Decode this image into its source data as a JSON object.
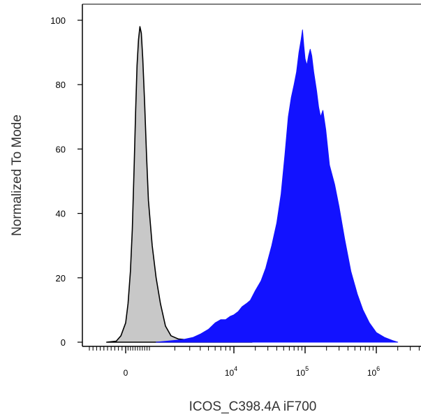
{
  "chart_data": {
    "type": "area",
    "xlabel": "ICOS_C398.4A iF700",
    "ylabel": "Normalized To Mode",
    "ylim": [
      0,
      105
    ],
    "xscale": "biexponential",
    "xlim": [
      -600,
      2600000
    ],
    "y_ticks": [
      {
        "label": "0",
        "value": 0
      },
      {
        "label": "20",
        "value": 20
      },
      {
        "label": "40",
        "value": 40
      },
      {
        "label": "60",
        "value": 60
      },
      {
        "label": "80",
        "value": 80
      },
      {
        "label": "100",
        "value": 100
      }
    ],
    "x_ticks": [
      {
        "base": "0",
        "exp": "",
        "value": 0
      },
      {
        "base": "10",
        "exp": "4",
        "value": 10000
      },
      {
        "base": "10",
        "exp": "5",
        "value": 100000
      },
      {
        "base": "10",
        "exp": "6",
        "value": 1000000
      }
    ],
    "series": [
      {
        "color": "#c8c8c8",
        "stroke": "#000000",
        "points": [
          [
            -800,
            0
          ],
          [
            -400,
            0.3
          ],
          [
            -200,
            2
          ],
          [
            0,
            6
          ],
          [
            100,
            12
          ],
          [
            200,
            22
          ],
          [
            280,
            35
          ],
          [
            360,
            55
          ],
          [
            420,
            72
          ],
          [
            480,
            86
          ],
          [
            540,
            94
          ],
          [
            600,
            98
          ],
          [
            660,
            96
          ],
          [
            720,
            88
          ],
          [
            800,
            74
          ],
          [
            880,
            58
          ],
          [
            960,
            44
          ],
          [
            1080,
            30
          ],
          [
            1200,
            20
          ],
          [
            1350,
            12
          ],
          [
            1550,
            5
          ],
          [
            1800,
            2
          ],
          [
            2200,
            1
          ],
          [
            3500,
            0.5
          ],
          [
            6000,
            0.5
          ],
          [
            11000,
            0.8
          ],
          [
            14000,
            0.4
          ],
          [
            18000,
            0
          ]
        ]
      },
      {
        "color": "#1212ff",
        "stroke": "#1212ff",
        "points": [
          [
            1200,
            0
          ],
          [
            1700,
            0.4
          ],
          [
            2500,
            0.8
          ],
          [
            3300,
            1.5
          ],
          [
            4000,
            2.5
          ],
          [
            5000,
            4
          ],
          [
            6000,
            6
          ],
          [
            7000,
            7
          ],
          [
            8000,
            7
          ],
          [
            9000,
            8
          ],
          [
            10000,
            8.5
          ],
          [
            11500,
            9.5
          ],
          [
            13000,
            11
          ],
          [
            15000,
            12
          ],
          [
            17000,
            13
          ],
          [
            20000,
            16
          ],
          [
            24000,
            19
          ],
          [
            28000,
            23
          ],
          [
            34000,
            30
          ],
          [
            40000,
            37
          ],
          [
            46000,
            46
          ],
          [
            52000,
            58
          ],
          [
            58000,
            70
          ],
          [
            64000,
            76
          ],
          [
            70000,
            80
          ],
          [
            76000,
            84
          ],
          [
            82000,
            90
          ],
          [
            88000,
            94
          ],
          [
            92000,
            97
          ],
          [
            96000,
            92
          ],
          [
            100000,
            88
          ],
          [
            106000,
            86
          ],
          [
            112000,
            89
          ],
          [
            118000,
            91
          ],
          [
            124000,
            89
          ],
          [
            132000,
            84
          ],
          [
            145000,
            78
          ],
          [
            155000,
            73
          ],
          [
            165000,
            70
          ],
          [
            178000,
            72
          ],
          [
            195000,
            66
          ],
          [
            220000,
            55
          ],
          [
            260000,
            49
          ],
          [
            300000,
            42
          ],
          [
            360000,
            32
          ],
          [
            440000,
            22
          ],
          [
            540000,
            15
          ],
          [
            650000,
            10
          ],
          [
            800000,
            6
          ],
          [
            1000000,
            3
          ],
          [
            1300000,
            1.5
          ],
          [
            1700000,
            0.5
          ],
          [
            2000000,
            0
          ]
        ]
      }
    ]
  }
}
